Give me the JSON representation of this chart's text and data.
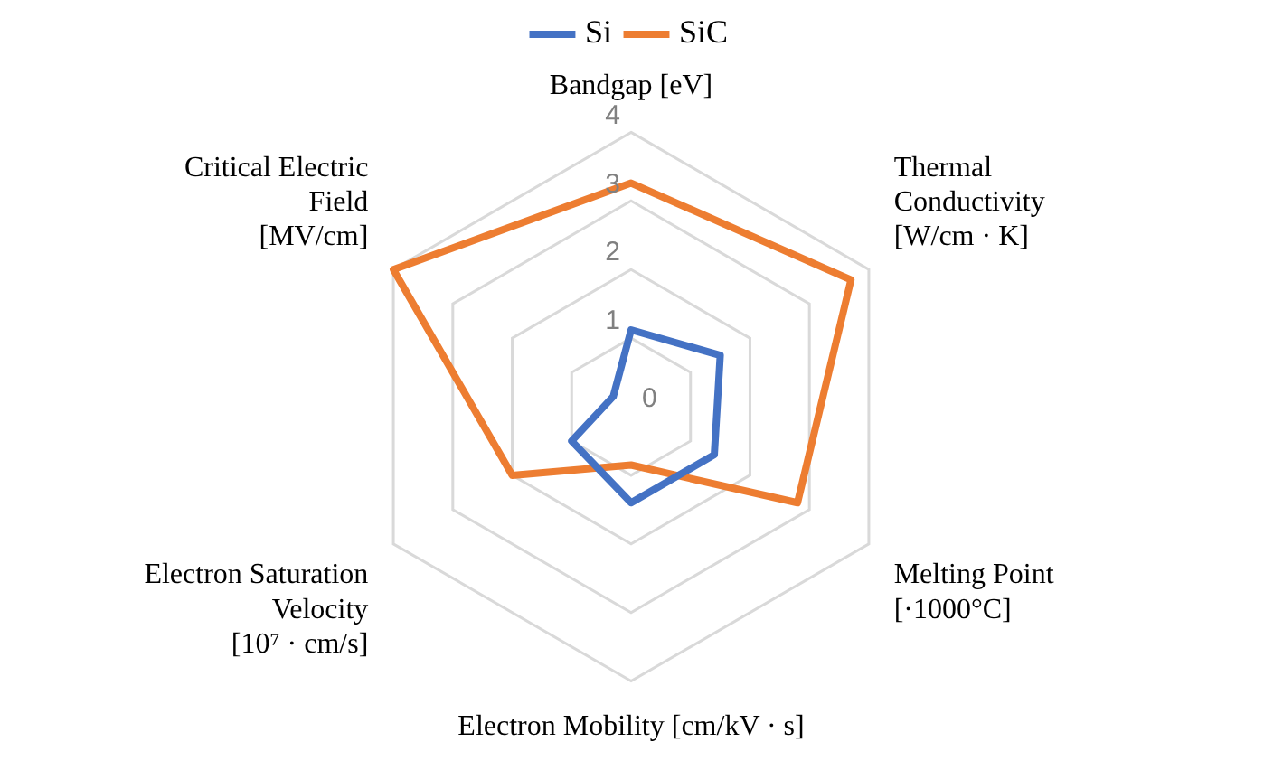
{
  "chart_data": {
    "type": "radar",
    "categories": [
      "Bandgap [eV]",
      "Thermal\nConductivity\n[W/cm · K]",
      "Melting Point\n[·1000°C]",
      "Electron Mobility [cm/kV · s]",
      "Electron Saturation\nVelocity\n[10⁷ · cm/s]",
      "Critical Electric\nField\n[MV/cm]"
    ],
    "series": [
      {
        "name": "Si",
        "color": "#4472c4",
        "values": [
          1.12,
          1.5,
          1.4,
          1.4,
          1.0,
          0.3
        ]
      },
      {
        "name": "SiC",
        "color": "#ed7d31",
        "values": [
          3.26,
          3.7,
          2.8,
          0.85,
          2.0,
          4.0
        ]
      }
    ],
    "ylim": [
      0,
      4
    ],
    "yticks": [
      0,
      1,
      2,
      3,
      4
    ],
    "grid": true,
    "legend": "top",
    "marker": "none"
  }
}
